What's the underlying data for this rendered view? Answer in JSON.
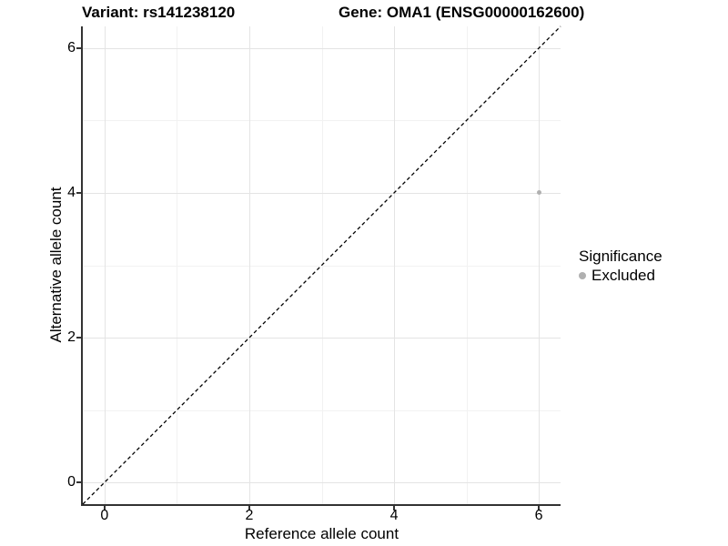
{
  "header": {
    "title_left": "Variant: rs141238120",
    "title_right": "Gene: OMA1 (ENSG00000162600)"
  },
  "chart_data": {
    "type": "scatter",
    "title_left": "Variant: rs141238120",
    "title_right": "Gene: OMA1 (ENSG00000162600)",
    "xlabel": "Reference allele count",
    "ylabel": "Alternative allele count",
    "xlim": [
      -0.3,
      6.3
    ],
    "ylim": [
      -0.3,
      6.3
    ],
    "x_ticks": [
      0,
      2,
      4,
      6
    ],
    "y_ticks": [
      0,
      2,
      4,
      6
    ],
    "x_minor_ticks": [
      1,
      3,
      5
    ],
    "y_minor_ticks": [
      1,
      3,
      5
    ],
    "grid": "major and minor, light gray on white",
    "identity_line": {
      "style": "dashed",
      "color": "#000000",
      "from": [
        -0.3,
        -0.3
      ],
      "to": [
        6.3,
        6.3
      ]
    },
    "series": [
      {
        "name": "Excluded",
        "color": "#b0b0b0",
        "points": [
          {
            "x": 6,
            "y": 4
          }
        ]
      }
    ],
    "legend": {
      "title": "Significance",
      "position": "right",
      "items": [
        {
          "label": "Excluded",
          "color": "#b0b0b0"
        }
      ]
    }
  },
  "colors": {
    "background": "#ffffff",
    "axis_line": "#333333",
    "grid_major": "#e4e4e4",
    "grid_minor": "#f2f2f2",
    "text": "#000000",
    "point": "#b0b0b0",
    "identity_line": "#000000"
  }
}
